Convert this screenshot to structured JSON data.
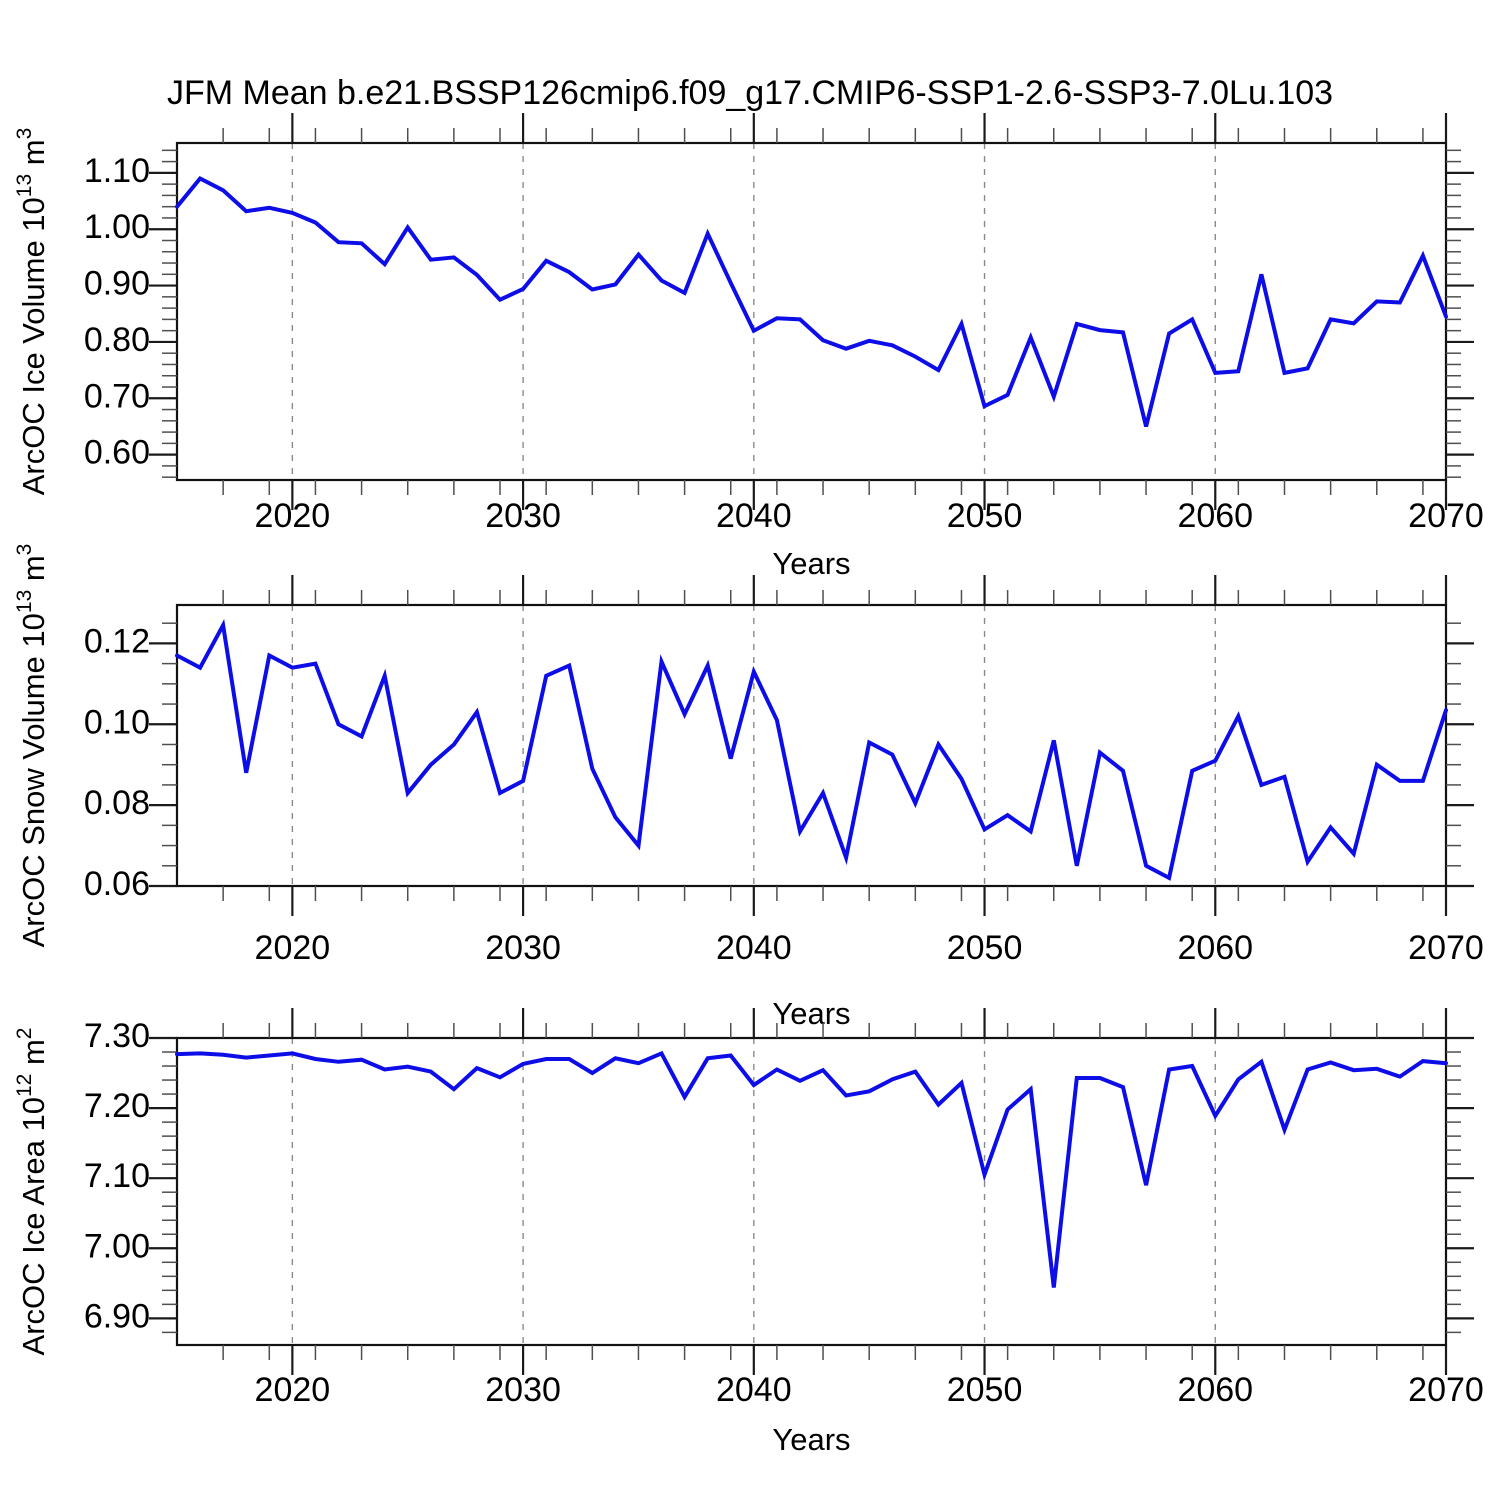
{
  "title": "JFM Mean b.e21.BSSP126cmip6.f09_g17.CMIP6-SSP1-2.6-SSP3-7.0Lu.103",
  "chart_data": {
    "type": "line",
    "line_color": "#0d0de8",
    "grid_color": "#8a8a8a",
    "frame_color": "#111111",
    "x": {
      "label": "Years",
      "start": 2015,
      "end": 2070,
      "minor_step": 2,
      "major_ticks": [
        2020,
        2030,
        2040,
        2050,
        2060,
        2070
      ],
      "tick_labels": [
        "2020",
        "2030",
        "2040",
        "2050",
        "2060",
        "2070"
      ],
      "gridlines": [
        2020,
        2030,
        2040,
        2050,
        2060
      ]
    },
    "panels": [
      {
        "name": "ice-volume",
        "ylabel": {
          "text": "ArcOC Ice Volume 10",
          "sup1": "13",
          "unit": " m",
          "sup2": "3"
        },
        "ylim": [
          0.555,
          1.153
        ],
        "ytick_values": [
          1.1,
          1.0,
          0.9,
          0.8,
          0.7,
          0.6
        ],
        "ytick_labels": [
          "1.10",
          "1.00",
          "0.90",
          "0.80",
          "0.70",
          "0.60"
        ],
        "yminor_step": 0.02,
        "values": [
          1.04,
          1.09,
          1.069,
          1.032,
          1.038,
          1.029,
          1.012,
          0.977,
          0.975,
          0.938,
          1.003,
          0.946,
          0.95,
          0.919,
          0.875,
          0.894,
          0.944,
          0.924,
          0.893,
          0.902,
          0.955,
          0.909,
          0.887,
          0.992,
          0.905,
          0.82,
          0.842,
          0.84,
          0.803,
          0.788,
          0.802,
          0.794,
          0.774,
          0.75,
          0.832,
          0.686,
          0.706,
          0.808,
          0.703,
          0.832,
          0.821,
          0.817,
          0.65,
          0.815,
          0.84,
          0.745,
          0.748,
          0.92,
          0.745,
          0.753,
          0.84,
          0.833,
          0.872,
          0.87,
          0.953,
          0.845
        ]
      },
      {
        "name": "snow-volume",
        "ylabel": {
          "text": "ArcOC Snow Volume 10",
          "sup1": "13",
          "unit": " m",
          "sup2": "3"
        },
        "ylim": [
          0.06,
          0.1295
        ],
        "ytick_values": [
          0.12,
          0.1,
          0.08,
          0.06
        ],
        "ytick_labels": [
          "0.12",
          "0.10",
          "0.08",
          "0.06"
        ],
        "yminor_step": 0.005,
        "values": [
          0.117,
          0.114,
          0.1245,
          0.088,
          0.117,
          0.114,
          0.115,
          0.1,
          0.097,
          0.112,
          0.083,
          0.09,
          0.095,
          0.103,
          0.083,
          0.086,
          0.112,
          0.1145,
          0.089,
          0.077,
          0.07,
          0.1155,
          0.1025,
          0.1145,
          0.0915,
          0.113,
          0.101,
          0.0735,
          0.083,
          0.067,
          0.0955,
          0.0925,
          0.0805,
          0.095,
          0.0865,
          0.074,
          0.0775,
          0.0735,
          0.096,
          0.065,
          0.093,
          0.0885,
          0.065,
          0.062,
          0.0885,
          0.091,
          0.102,
          0.085,
          0.087,
          0.066,
          0.0745,
          0.068,
          0.09,
          0.086,
          0.086,
          0.1035
        ]
      },
      {
        "name": "ice-area",
        "ylabel": {
          "text": "ArcOC Ice Area 10",
          "sup1": "12",
          "unit": " m",
          "sup2": "2"
        },
        "ylim": [
          6.862,
          7.3
        ],
        "ytick_values": [
          7.3,
          7.2,
          7.1,
          7.0,
          6.9
        ],
        "ytick_labels": [
          "7.30",
          "7.20",
          "7.10",
          "7.00",
          "6.90"
        ],
        "yminor_step": 0.02,
        "values": [
          7.277,
          7.278,
          7.276,
          7.272,
          7.275,
          7.278,
          7.27,
          7.266,
          7.269,
          7.255,
          7.259,
          7.252,
          7.227,
          7.257,
          7.244,
          7.263,
          7.27,
          7.27,
          7.25,
          7.271,
          7.264,
          7.278,
          7.216,
          7.271,
          7.275,
          7.233,
          7.255,
          7.239,
          7.254,
          7.218,
          7.224,
          7.241,
          7.252,
          7.205,
          7.236,
          7.105,
          7.198,
          7.227,
          6.944,
          7.243,
          7.243,
          7.23,
          7.09,
          7.255,
          7.26,
          7.189,
          7.241,
          7.266,
          7.169,
          7.255,
          7.265,
          7.254,
          7.256,
          7.245,
          7.267,
          7.264
        ]
      }
    ]
  }
}
